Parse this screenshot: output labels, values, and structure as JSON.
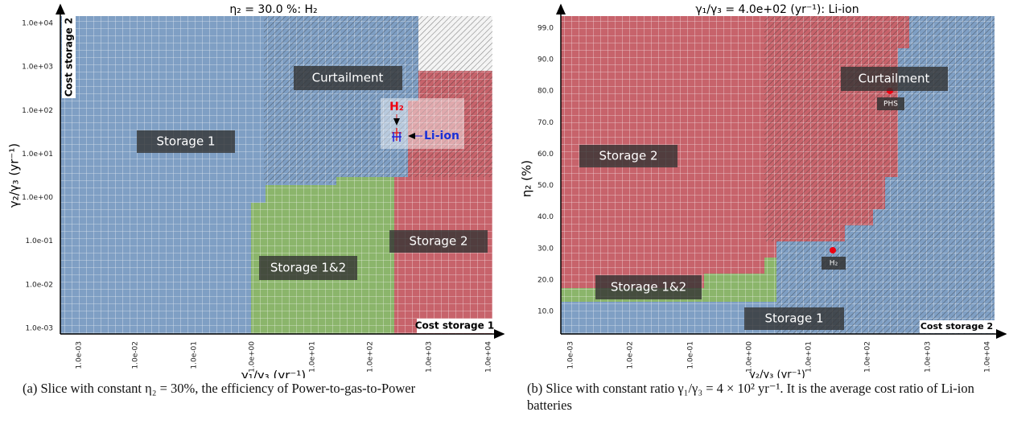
{
  "figures": [
    {
      "title": "η₂ = 30.0 %: H₂",
      "xlabel": "γ₁/γ₃ (yr⁻¹)",
      "ylabel": "γ₂/γ₃ (yr⁻¹)",
      "xticks": [
        "1.0e-03",
        "1.0e-02",
        "1.0e-01",
        "1.0e+00",
        "1.0e+01",
        "1.0e+02",
        "1.0e+03",
        "1.0e+04"
      ],
      "yticks": [
        "1.0e+04",
        "1.0e+03",
        "1.0e+02",
        "1.0e+01",
        "1.0e+00",
        "1.0e-01",
        "1.0e-02",
        "1.0e-03"
      ],
      "regions": [
        "Curtailment",
        "Storage 1",
        "Storage 1&2",
        "Storage 2"
      ],
      "corner_y": "Cost storage 2",
      "corner_x": "Cost storage 1",
      "markers": [
        "H₂",
        "Li-ion"
      ],
      "caption": "(a) Slice with constant η₂ = 30%, the efficiency of Power-to-gas-to-Power"
    },
    {
      "title": "γ₁/γ₃ = 4.0e+02 (yr⁻¹): Li-ion",
      "xlabel": "γ₂/γ₃ (yr⁻¹)",
      "ylabel": "η₂ (%)",
      "xticks": [
        "1.0e-03",
        "1.0e-02",
        "1.0e-01",
        "1.0e+00",
        "1.0e+01",
        "1.0e+02",
        "1.0e+03",
        "1.0e+04"
      ],
      "yticks": [
        "99.0",
        "90.0",
        "80.0",
        "70.0",
        "60.0",
        "50.0",
        "40.0",
        "30.0",
        "20.0",
        "10.0"
      ],
      "regions": [
        "Curtailment",
        "Storage 2",
        "Storage 1&2",
        "Storage 1"
      ],
      "corner_x": "Cost storage 2",
      "markers": [
        "PHS",
        "H₂"
      ],
      "caption": "(b) Slice with constant ratio γ₁/γ₃ = 4 × 10² yr⁻¹. It is the average cost ratio of Li-ion batteries"
    }
  ]
}
